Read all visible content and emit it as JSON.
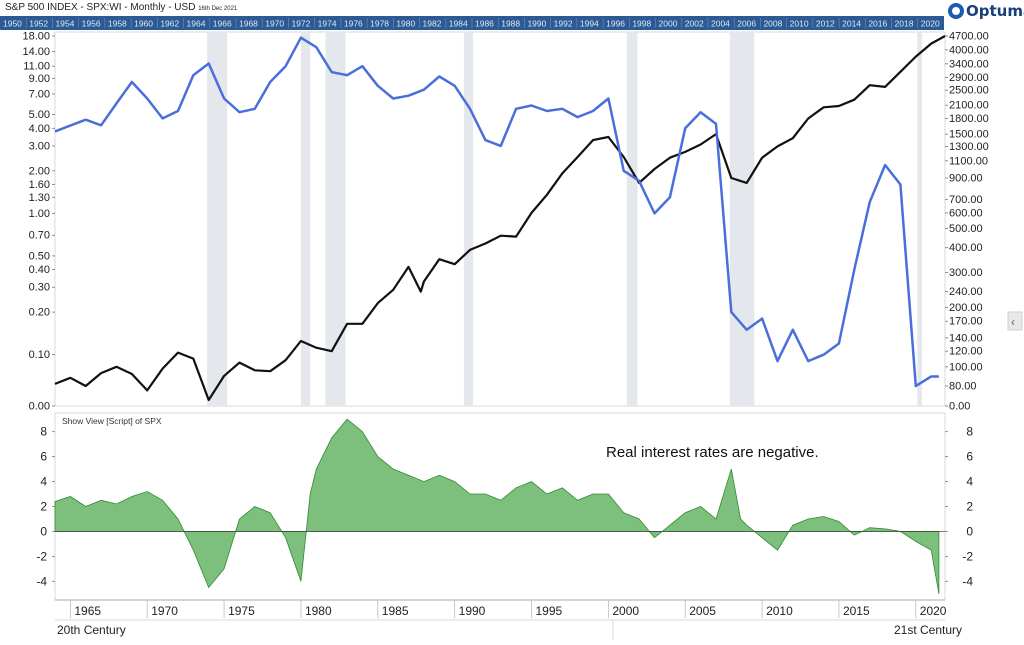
{
  "header": {
    "title": "S&P 500 INDEX - SPX:WI - Monthly - USD",
    "date": "16th Dec 2021",
    "logo_text": "Optuma",
    "decade_years": [
      "1950",
      "1952",
      "1954",
      "1956",
      "1958",
      "1960",
      "1962",
      "1964",
      "1966",
      "1968",
      "1970",
      "1972",
      "1974",
      "1976",
      "1978",
      "1980",
      "1982",
      "1984",
      "1986",
      "1988",
      "1990",
      "1992",
      "1994",
      "1996",
      "1998",
      "2000",
      "2002",
      "2004",
      "2006",
      "2008",
      "2010",
      "2012",
      "2014",
      "2016",
      "2018",
      "2020"
    ]
  },
  "annotation": "Real interest rates are negative.",
  "lower_panel_title": "Show View [Script] of SPX",
  "century_labels": [
    "20th Century",
    "21st Century"
  ],
  "colors": {
    "spx_line": "#111111",
    "rate_line": "#4a6fdc",
    "recession": "#e4e7ec",
    "area_fill": "#5cb05c",
    "area_stroke": "#2f8a2f",
    "header_bar": "#2c5a95"
  },
  "chart_data": [
    {
      "type": "line",
      "x_range": [
        1964,
        2021.9
      ],
      "x_ticks": [
        1965,
        1970,
        1975,
        1980,
        1985,
        1990,
        1995,
        2000,
        2005,
        2010,
        2015,
        2020
      ],
      "left_axis": {
        "scale": "log",
        "tick_labels": [
          "18.00",
          "14.00",
          "11.00",
          "9.00",
          "7.00",
          "5.00",
          "4.00",
          "3.00",
          "2.00",
          "1.60",
          "1.30",
          "1.00",
          "0.70",
          "0.50",
          "0.40",
          "0.30",
          "0.20",
          "0.10",
          "0.00"
        ]
      },
      "right_axis": {
        "scale": "log",
        "tick_labels": [
          "4700.00",
          "4000.00",
          "3400.00",
          "2900.00",
          "2500.00",
          "2100.00",
          "1800.00",
          "1500.00",
          "1300.00",
          "1100.00",
          "900.00",
          "700.00",
          "600.00",
          "500.00",
          "400.00",
          "300.00",
          "240.00",
          "200.00",
          "170.00",
          "140.00",
          "120.00",
          "100.00",
          "80.00",
          "0.00"
        ]
      },
      "recession_periods": [
        [
          1973.9,
          1975.2
        ],
        [
          1980.0,
          1980.6
        ],
        [
          1981.6,
          1982.9
        ],
        [
          1990.6,
          1991.2
        ],
        [
          2001.2,
          2001.9
        ],
        [
          2007.9,
          2009.5
        ],
        [
          2020.1,
          2020.4
        ]
      ],
      "series": [
        {
          "axis": "right",
          "points": [
            [
              1964,
              82
            ],
            [
              1965,
              88
            ],
            [
              1966,
              80
            ],
            [
              1967,
              93
            ],
            [
              1968,
              100
            ],
            [
              1969,
              92
            ],
            [
              1970,
              76
            ],
            [
              1971,
              98
            ],
            [
              1972,
              118
            ],
            [
              1973,
              110
            ],
            [
              1974,
              68
            ],
            [
              1975,
              90
            ],
            [
              1976,
              105
            ],
            [
              1977,
              96
            ],
            [
              1978,
              95
            ],
            [
              1979,
              108
            ],
            [
              1980,
              135
            ],
            [
              1981,
              125
            ],
            [
              1982,
              120
            ],
            [
              1983,
              165
            ],
            [
              1984,
              165
            ],
            [
              1985,
              210
            ],
            [
              1986,
              245
            ],
            [
              1987,
              320
            ],
            [
              1987.8,
              240
            ],
            [
              1988,
              270
            ],
            [
              1989,
              350
            ],
            [
              1990,
              330
            ],
            [
              1991,
              390
            ],
            [
              1992,
              420
            ],
            [
              1993,
              460
            ],
            [
              1994,
              455
            ],
            [
              1995,
              600
            ],
            [
              1996,
              740
            ],
            [
              1997,
              950
            ],
            [
              1998,
              1150
            ],
            [
              1999,
              1400
            ],
            [
              2000,
              1450
            ],
            [
              2001,
              1150
            ],
            [
              2002,
              850
            ],
            [
              2003,
              1000
            ],
            [
              2004,
              1140
            ],
            [
              2005,
              1220
            ],
            [
              2006,
              1330
            ],
            [
              2007,
              1500
            ],
            [
              2008,
              900
            ],
            [
              2009,
              850
            ],
            [
              2010,
              1140
            ],
            [
              2011,
              1300
            ],
            [
              2012,
              1430
            ],
            [
              2013,
              1800
            ],
            [
              2014,
              2050
            ],
            [
              2015,
              2080
            ],
            [
              2016,
              2240
            ],
            [
              2017,
              2650
            ],
            [
              2018,
              2600
            ],
            [
              2019,
              3100
            ],
            [
              2020,
              3700
            ],
            [
              2021,
              4300
            ],
            [
              2021.9,
              4700
            ]
          ]
        },
        {
          "axis": "left",
          "points": [
            [
              1964,
              3.8
            ],
            [
              1966,
              4.6
            ],
            [
              1967,
              4.2
            ],
            [
              1968,
              6.0
            ],
            [
              1969,
              8.5
            ],
            [
              1970,
              6.5
            ],
            [
              1971,
              4.7
            ],
            [
              1972,
              5.3
            ],
            [
              1973,
              9.5
            ],
            [
              1974,
              11.5
            ],
            [
              1975,
              6.5
            ],
            [
              1976,
              5.2
            ],
            [
              1977,
              5.5
            ],
            [
              1978,
              8.5
            ],
            [
              1979,
              11.0
            ],
            [
              1980,
              17.5
            ],
            [
              1981,
              15.0
            ],
            [
              1982,
              10.0
            ],
            [
              1983,
              9.5
            ],
            [
              1984,
              11.0
            ],
            [
              1985,
              8.0
            ],
            [
              1986,
              6.5
            ],
            [
              1987,
              6.8
            ],
            [
              1988,
              7.5
            ],
            [
              1989,
              9.3
            ],
            [
              1990,
              8.0
            ],
            [
              1991,
              5.5
            ],
            [
              1992,
              3.3
            ],
            [
              1993,
              3.0
            ],
            [
              1994,
              5.5
            ],
            [
              1995,
              5.8
            ],
            [
              1996,
              5.3
            ],
            [
              1997,
              5.5
            ],
            [
              1998,
              4.8
            ],
            [
              1999,
              5.3
            ],
            [
              2000,
              6.5
            ],
            [
              2001,
              2.0
            ],
            [
              2002,
              1.7
            ],
            [
              2003,
              1.0
            ],
            [
              2004,
              1.3
            ],
            [
              2005,
              4.0
            ],
            [
              2006,
              5.2
            ],
            [
              2007,
              4.3
            ],
            [
              2008,
              0.2
            ],
            [
              2009,
              0.15
            ],
            [
              2010,
              0.18
            ],
            [
              2011,
              0.09
            ],
            [
              2012,
              0.15
            ],
            [
              2013,
              0.09
            ],
            [
              2014,
              0.1
            ],
            [
              2015,
              0.12
            ],
            [
              2016,
              0.4
            ],
            [
              2017,
              1.2
            ],
            [
              2018,
              2.2
            ],
            [
              2019,
              1.6
            ],
            [
              2020,
              0.06
            ],
            [
              2021,
              0.07
            ],
            [
              2021.5,
              0.07
            ]
          ]
        }
      ]
    },
    {
      "type": "area",
      "x_range": [
        1964,
        2021.9
      ],
      "y_range": [
        -5.5,
        9.5
      ],
      "y_ticks": [
        8,
        6,
        4,
        2,
        0,
        -2,
        -4
      ],
      "points": [
        [
          1964,
          2.4
        ],
        [
          1965,
          2.8
        ],
        [
          1966,
          2.0
        ],
        [
          1967,
          2.5
        ],
        [
          1968,
          2.2
        ],
        [
          1969,
          2.8
        ],
        [
          1970,
          3.2
        ],
        [
          1971,
          2.5
        ],
        [
          1972,
          1.0
        ],
        [
          1973,
          -1.5
        ],
        [
          1974,
          -4.5
        ],
        [
          1975,
          -3.0
        ],
        [
          1976,
          1.0
        ],
        [
          1977,
          2.0
        ],
        [
          1978,
          1.5
        ],
        [
          1979,
          -0.5
        ],
        [
          1980,
          -4.0
        ],
        [
          1980.6,
          3.0
        ],
        [
          1981,
          5.0
        ],
        [
          1982,
          7.5
        ],
        [
          1983,
          9.0
        ],
        [
          1984,
          8.0
        ],
        [
          1985,
          6.0
        ],
        [
          1986,
          5.0
        ],
        [
          1987,
          4.5
        ],
        [
          1988,
          4.0
        ],
        [
          1989,
          4.5
        ],
        [
          1990,
          4.0
        ],
        [
          1991,
          3.0
        ],
        [
          1992,
          3.0
        ],
        [
          1993,
          2.5
        ],
        [
          1994,
          3.5
        ],
        [
          1995,
          4.0
        ],
        [
          1996,
          3.0
        ],
        [
          1997,
          3.5
        ],
        [
          1998,
          2.5
        ],
        [
          1999,
          3.0
        ],
        [
          2000,
          3.0
        ],
        [
          2001,
          1.5
        ],
        [
          2002,
          1.0
        ],
        [
          2003,
          -0.5
        ],
        [
          2004,
          0.5
        ],
        [
          2005,
          1.5
        ],
        [
          2006,
          2.0
        ],
        [
          2007,
          1.0
        ],
        [
          2008,
          5.0
        ],
        [
          2008.6,
          1.0
        ],
        [
          2009,
          0.5
        ],
        [
          2010,
          -0.5
        ],
        [
          2011,
          -1.5
        ],
        [
          2012,
          0.5
        ],
        [
          2013,
          1.0
        ],
        [
          2014,
          1.2
        ],
        [
          2015,
          0.8
        ],
        [
          2016,
          -0.3
        ],
        [
          2017,
          0.3
        ],
        [
          2018,
          0.2
        ],
        [
          2019,
          0.0
        ],
        [
          2020,
          -0.8
        ],
        [
          2021,
          -1.5
        ],
        [
          2021.5,
          -5.0
        ]
      ]
    }
  ]
}
